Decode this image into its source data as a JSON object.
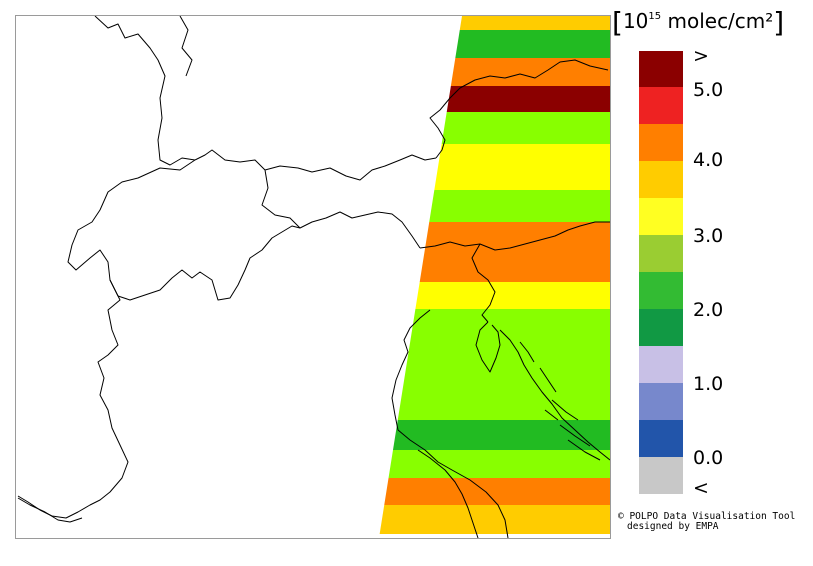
{
  "legend": {
    "unit_prefix": "10",
    "unit_exponent": "15",
    "unit_suffix": " molec/cm²",
    "ticks": [
      ">",
      "5.0",
      "4.0",
      "3.0",
      "2.0",
      "1.0",
      "0.0",
      "<"
    ],
    "colors": [
      "#8b0000",
      "#ee2222",
      "#ff7f00",
      "#ffcc00",
      "#ffff22",
      "#9acd32",
      "#33bb33",
      "#119944",
      "#c8c0e6",
      "#7788cc",
      "#2255aa",
      "#c8c8c8"
    ]
  },
  "swath_bands": [
    {
      "value_class": "3.0-3.5",
      "color": "#ffcc00"
    },
    {
      "value_class": "1.5-2.0",
      "color": "#22bb22"
    },
    {
      "value_class": "3.5-4.0",
      "color": "#ff7f00"
    },
    {
      "value_class": ">5.0",
      "color": "#8b0000"
    },
    {
      "value_class": "2.0-2.5",
      "color": "#88ff00"
    },
    {
      "value_class": "2.5-3.0",
      "color": "#ffff00"
    },
    {
      "value_class": "2.0-2.5",
      "color": "#88ff00"
    },
    {
      "value_class": "3.5-4.0",
      "color": "#ff7f00"
    },
    {
      "value_class": "2.5-3.0",
      "color": "#ffff00"
    },
    {
      "value_class": "2.0-2.5",
      "color": "#88ff00"
    },
    {
      "value_class": "1.5-2.0",
      "color": "#22bb22"
    },
    {
      "value_class": "2.0-2.5",
      "color": "#88ff00"
    },
    {
      "value_class": "3.5-4.0",
      "color": "#ff7f00"
    },
    {
      "value_class": "3.0-3.5",
      "color": "#ffcc00"
    }
  ],
  "credit": {
    "line1": "© POLPO Data Visualisation Tool",
    "line2": "designed by EMPA"
  }
}
